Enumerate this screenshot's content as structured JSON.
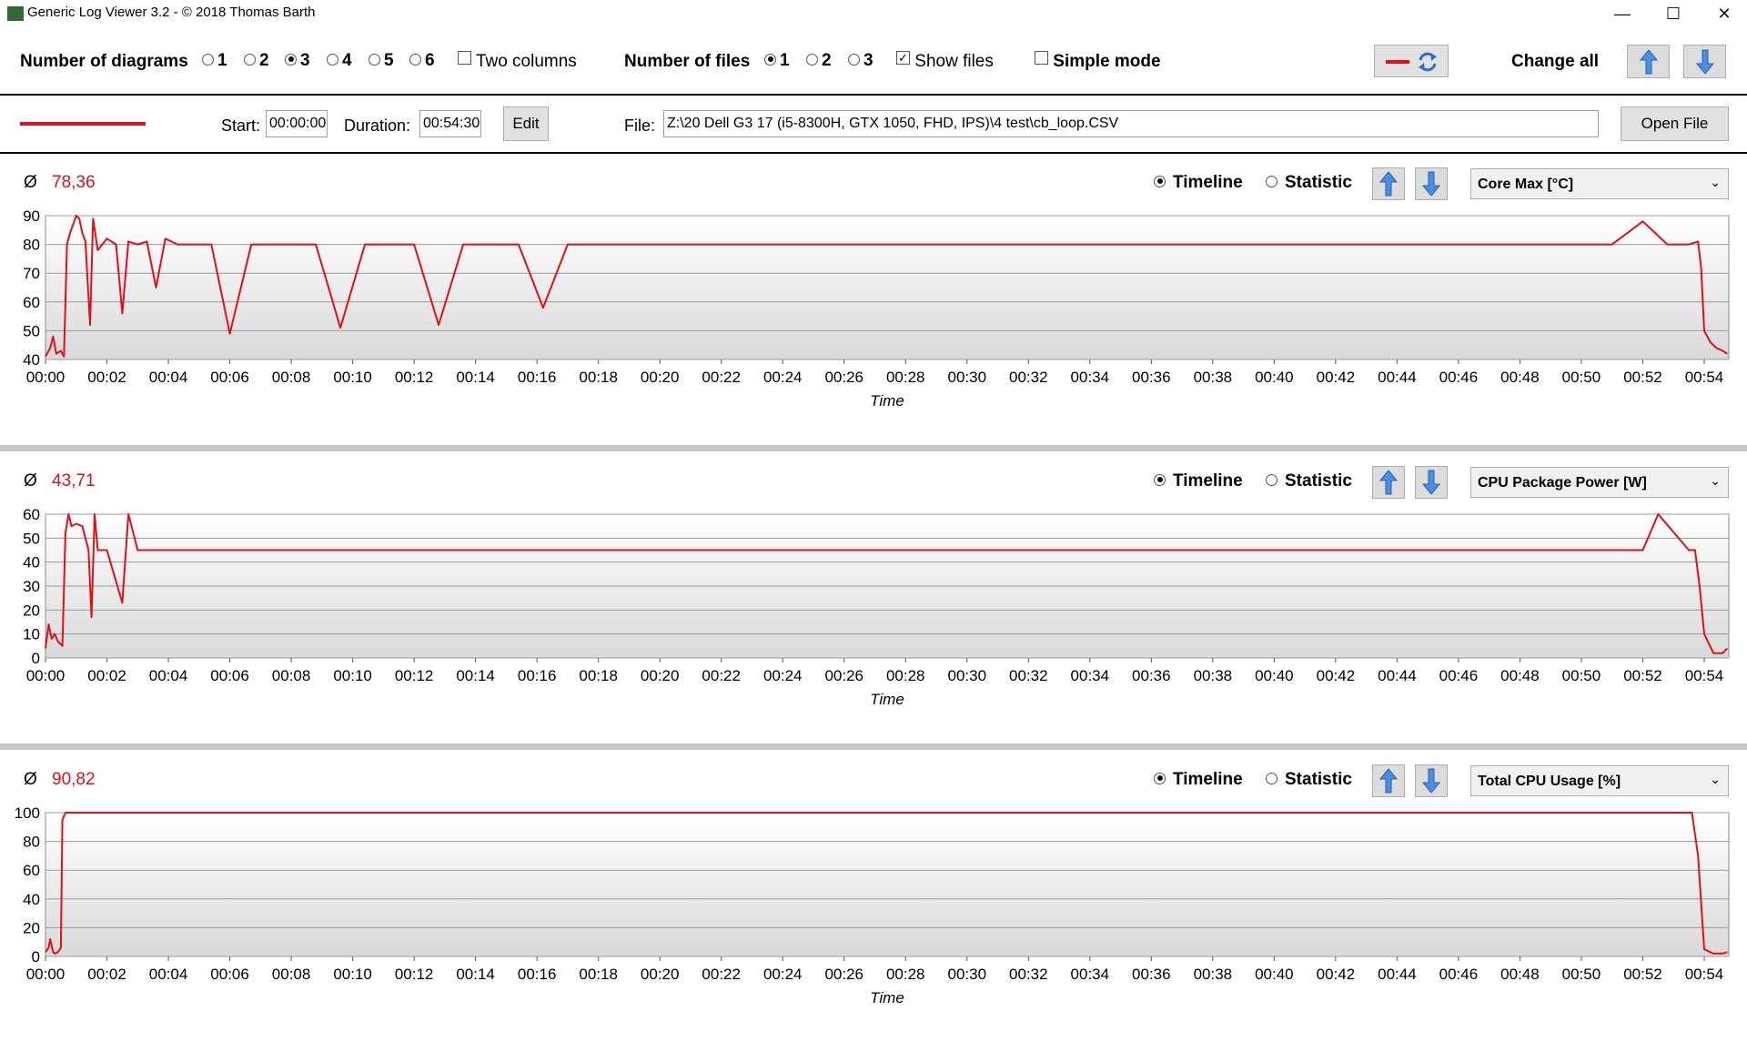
{
  "window": {
    "title": "Generic Log Viewer 3.2 - © 2018 Thomas Barth",
    "minimize": "—",
    "maximize": "☐",
    "close": "✕"
  },
  "toolbar": {
    "diagrams_label": "Number of diagrams",
    "diagram_options": [
      "1",
      "2",
      "3",
      "4",
      "5",
      "6"
    ],
    "diagram_selected": "3",
    "two_columns_label": "Two columns",
    "two_columns_checked": false,
    "files_label": "Number of files",
    "file_options": [
      "1",
      "2",
      "3"
    ],
    "file_selected": "1",
    "show_files_label": "Show files",
    "show_files_checked": true,
    "simple_mode_label": "Simple mode",
    "simple_mode_checked": false,
    "change_all_label": "Change all"
  },
  "file_row": {
    "start_label": "Start:",
    "start_value": "00:00:00",
    "duration_label": "Duration:",
    "duration_value": "00:54:30",
    "edit_label": "Edit",
    "file_label": "File:",
    "file_path": "Z:\\20 Dell G3 17 (i5-8300H, GTX 1050, FHD, IPS)\\4 test\\cb_loop.CSV",
    "open_file_label": "Open File",
    "line_color": "#e0101a"
  },
  "panels": [
    {
      "avg_symbol": "Ø",
      "avg_value": "78,36",
      "timeline_label": "Timeline",
      "statistic_label": "Statistic",
      "sensor": "Core Max [°C]",
      "xlabel": "Time"
    },
    {
      "avg_symbol": "Ø",
      "avg_value": "43,71",
      "timeline_label": "Timeline",
      "statistic_label": "Statistic",
      "sensor": "CPU Package Power [W]",
      "xlabel": "Time"
    },
    {
      "avg_symbol": "Ø",
      "avg_value": "90,82",
      "timeline_label": "Timeline",
      "statistic_label": "Statistic",
      "sensor": "Total CPU Usage [%]",
      "xlabel": "Time"
    }
  ],
  "chart_data": [
    {
      "type": "line",
      "ylabel": "",
      "xlabel": "Time",
      "ylim": [
        40,
        90
      ],
      "yticks": [
        "40",
        "50",
        "60",
        "70",
        "80",
        "90"
      ],
      "xticks": [
        "00:00",
        "00:02",
        "00:04",
        "00:06",
        "00:08",
        "00:10",
        "00:12",
        "00:14",
        "00:16",
        "00:18",
        "00:20",
        "00:22",
        "00:24",
        "00:26",
        "00:28",
        "00:30",
        "00:32",
        "00:34",
        "00:36",
        "00:38",
        "00:40",
        "00:42",
        "00:44",
        "00:46",
        "00:48",
        "00:50",
        "00:52",
        "00:54"
      ],
      "xlim_min": [
        0,
        54.8
      ],
      "color": "#e0101a",
      "series": [
        {
          "x": [
            0,
            0.15,
            0.25,
            0.35,
            0.5,
            0.6,
            0.7,
            0.8,
            0.9,
            1.0,
            1.1,
            1.2,
            1.3,
            1.45,
            1.55,
            1.7,
            2.0,
            2.3,
            2.5,
            2.7,
            3.0,
            3.3,
            3.6,
            3.9,
            4.3,
            4.8,
            5.4,
            6.0,
            6.7,
            7.3,
            8.0,
            8.8,
            9.6,
            10.4,
            11.2,
            12.0,
            12.8,
            13.6,
            14.5,
            15.4,
            16.2,
            17.0,
            18.0,
            19.0,
            20.0,
            21.0,
            22.0,
            23.0,
            24.0,
            25.0,
            26.0,
            27.0,
            28.0,
            29.0,
            30.0,
            31.0,
            32.0,
            33.0,
            34.0,
            35.0,
            36.0,
            37.0,
            38.0,
            39.0,
            40.0,
            41.0,
            42.0,
            43.0,
            44.0,
            45.0,
            46.0,
            47.0,
            48.0,
            49.0,
            50.0,
            51.0,
            52.0,
            52.8,
            53.5,
            53.8,
            53.9,
            54.0,
            54.2,
            54.4,
            54.6,
            54.75
          ],
          "y": [
            41,
            44,
            48,
            42,
            43,
            41,
            80,
            84,
            87,
            90,
            89,
            84,
            81,
            52,
            89,
            78,
            82,
            80,
            56,
            81,
            80,
            81,
            65,
            82,
            80,
            80,
            80,
            49,
            80,
            80,
            80,
            80,
            51,
            80,
            80,
            80,
            52,
            80,
            80,
            80,
            58,
            80,
            80,
            80,
            80,
            80,
            80,
            80,
            80,
            80,
            80,
            80,
            80,
            80,
            80,
            80,
            80,
            80,
            80,
            80,
            80,
            80,
            80,
            80,
            80,
            80,
            80,
            80,
            80,
            80,
            80,
            80,
            80,
            80,
            80,
            80,
            88,
            80,
            80,
            81,
            72,
            50,
            46,
            44,
            43,
            42
          ]
        }
      ]
    },
    {
      "type": "line",
      "ylabel": "",
      "xlabel": "Time",
      "ylim": [
        0,
        60
      ],
      "yticks": [
        "0",
        "10",
        "20",
        "30",
        "40",
        "50",
        "60"
      ],
      "xticks": [
        "00:00",
        "00:02",
        "00:04",
        "00:06",
        "00:08",
        "00:10",
        "00:12",
        "00:14",
        "00:16",
        "00:18",
        "00:20",
        "00:22",
        "00:24",
        "00:26",
        "00:28",
        "00:30",
        "00:32",
        "00:34",
        "00:36",
        "00:38",
        "00:40",
        "00:42",
        "00:44",
        "00:46",
        "00:48",
        "00:50",
        "00:52",
        "00:54"
      ],
      "color": "#e0101a",
      "series": [
        {
          "x": [
            0,
            0.1,
            0.2,
            0.3,
            0.4,
            0.55,
            0.65,
            0.75,
            0.85,
            1.0,
            1.2,
            1.4,
            1.5,
            1.6,
            1.7,
            2.0,
            2.5,
            2.7,
            3.0,
            3.5,
            4.0,
            5.0,
            6.0,
            7.0,
            8.0,
            9.0,
            10.0,
            11.0,
            12.0,
            13.0,
            14.0,
            15.0,
            16.0,
            17.0,
            18.0,
            19.0,
            20.0,
            21.0,
            22.0,
            23.0,
            24.0,
            25.0,
            26.0,
            27.0,
            28.0,
            29.0,
            30.0,
            31.0,
            32.0,
            33.0,
            34.0,
            35.0,
            36.0,
            37.0,
            38.0,
            39.0,
            40.0,
            41.0,
            42.0,
            43.0,
            44.0,
            45.0,
            46.0,
            47.0,
            48.0,
            49.0,
            50.0,
            51.0,
            52.0,
            52.5,
            53.5,
            53.7,
            53.85,
            54.0,
            54.3,
            54.6,
            54.75
          ],
          "y": [
            4,
            14,
            8,
            10,
            7,
            5,
            52,
            60,
            55,
            56,
            55,
            45,
            17,
            60,
            45,
            45,
            23,
            60,
            45,
            45,
            45,
            45,
            45,
            45,
            45,
            45,
            45,
            45,
            45,
            45,
            45,
            45,
            45,
            45,
            45,
            45,
            45,
            45,
            45,
            45,
            45,
            45,
            45,
            45,
            45,
            45,
            45,
            45,
            45,
            45,
            45,
            45,
            45,
            45,
            45,
            45,
            45,
            45,
            45,
            45,
            45,
            45,
            45,
            45,
            45,
            45,
            45,
            45,
            45,
            60,
            45,
            45,
            30,
            10,
            2,
            2,
            4
          ]
        }
      ]
    },
    {
      "type": "line",
      "ylabel": "",
      "xlabel": "Time",
      "ylim": [
        0,
        100
      ],
      "yticks": [
        "0",
        "20",
        "40",
        "60",
        "80",
        "100"
      ],
      "xticks": [
        "00:00",
        "00:02",
        "00:04",
        "00:06",
        "00:08",
        "00:10",
        "00:12",
        "00:14",
        "00:16",
        "00:18",
        "00:20",
        "00:22",
        "00:24",
        "00:26",
        "00:28",
        "00:30",
        "00:32",
        "00:34",
        "00:36",
        "00:38",
        "00:40",
        "00:42",
        "00:44",
        "00:46",
        "00:48",
        "00:50",
        "00:52",
        "00:54"
      ],
      "color": "#e0101a",
      "series": [
        {
          "x": [
            0,
            0.1,
            0.15,
            0.25,
            0.3,
            0.4,
            0.5,
            0.55,
            0.65,
            1.0,
            1.5,
            2.0,
            3.0,
            4.0,
            5.0,
            6.0,
            7.0,
            8.0,
            9.0,
            10.0,
            11.0,
            12.0,
            13.0,
            14.0,
            15.0,
            16.0,
            17.0,
            18.0,
            19.0,
            20.0,
            21.0,
            22.0,
            23.0,
            24.0,
            25.0,
            26.0,
            27.0,
            28.0,
            29.0,
            30.0,
            31.0,
            32.0,
            33.0,
            34.0,
            35.0,
            36.0,
            37.0,
            38.0,
            39.0,
            40.0,
            41.0,
            42.0,
            43.0,
            44.0,
            45.0,
            46.0,
            47.0,
            48.0,
            49.0,
            50.0,
            51.0,
            52.0,
            53.0,
            53.6,
            53.8,
            54.0,
            54.3,
            54.6,
            54.75
          ],
          "y": [
            3,
            6,
            12,
            3,
            2,
            3,
            6,
            95,
            100,
            100,
            100,
            100,
            100,
            100,
            100,
            100,
            100,
            100,
            100,
            100,
            100,
            100,
            100,
            100,
            100,
            100,
            100,
            100,
            100,
            100,
            100,
            100,
            100,
            100,
            100,
            100,
            100,
            100,
            100,
            100,
            100,
            100,
            100,
            100,
            100,
            100,
            100,
            100,
            100,
            100,
            100,
            100,
            100,
            100,
            100,
            100,
            100,
            100,
            100,
            100,
            100,
            100,
            100,
            100,
            70,
            5,
            2,
            2,
            3
          ]
        }
      ]
    }
  ]
}
